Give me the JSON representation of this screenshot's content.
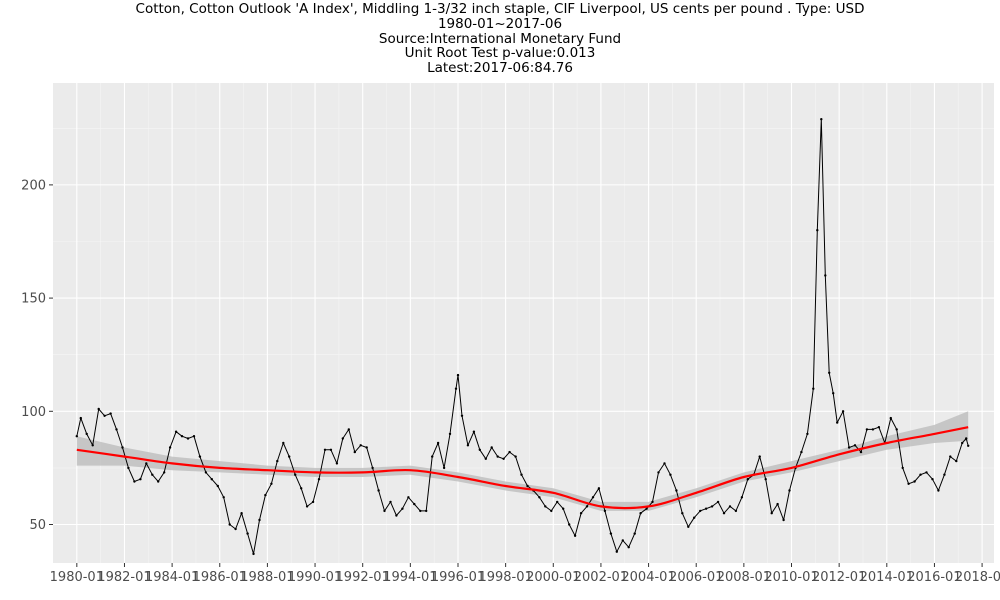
{
  "title_lines": [
    "Cotton, Cotton Outlook 'A Index', Middling 1-3/32 inch staple, CIF Liverpool, US cents per pound . Type: USD",
    "1980-01~2017-06",
    "Source:International Monetary Fund",
    "Unit Root Test p-value:0.013",
    "Latest:2017-06:84.76"
  ],
  "chart_data": {
    "type": "line",
    "title": "Cotton, Cotton Outlook 'A Index', Middling 1-3/32 inch staple, CIF Liverpool, US cents per pound . Type: USD",
    "subtitle": [
      "1980-01~2017-06",
      "Source:International Monetary Fund",
      "Unit Root Test p-value:0.013",
      "Latest:2017-06:84.76"
    ],
    "xlabel": "",
    "ylabel": "",
    "xlim": [
      "1979-01",
      "2018-07"
    ],
    "ylim": [
      33,
      245
    ],
    "x_ticks": [
      "1980-01",
      "1982-01",
      "1984-01",
      "1986-01",
      "1988-01",
      "1990-01",
      "1992-01",
      "1994-01",
      "1996-01",
      "1998-01",
      "2000-01",
      "2002-01",
      "2004-01",
      "2006-01",
      "2008-01",
      "2010-01",
      "2012-01",
      "2014-01",
      "2016-01",
      "2018-01"
    ],
    "y_ticks": [
      50,
      100,
      150,
      200
    ],
    "grid": true,
    "legend": "none",
    "colors": {
      "series": "#000000",
      "trend": "#ff0000",
      "band": "#bfbfbf",
      "panel": "#ebebeb",
      "grid": "#ffffff"
    },
    "series": [
      {
        "role": "observed",
        "style": "black line with point markers",
        "points": [
          [
            "1980-01",
            89
          ],
          [
            "1980-03",
            97
          ],
          [
            "1980-06",
            90
          ],
          [
            "1980-09",
            85
          ],
          [
            "1980-12",
            101
          ],
          [
            "1981-03",
            98
          ],
          [
            "1981-06",
            99
          ],
          [
            "1981-09",
            92
          ],
          [
            "1981-12",
            84
          ],
          [
            "1982-03",
            75
          ],
          [
            "1982-06",
            69
          ],
          [
            "1982-09",
            70
          ],
          [
            "1982-12",
            77
          ],
          [
            "1983-03",
            72
          ],
          [
            "1983-06",
            69
          ],
          [
            "1983-09",
            73
          ],
          [
            "1983-12",
            84
          ],
          [
            "1984-03",
            91
          ],
          [
            "1984-06",
            89
          ],
          [
            "1984-09",
            88
          ],
          [
            "1984-12",
            89
          ],
          [
            "1985-03",
            80
          ],
          [
            "1985-06",
            73
          ],
          [
            "1985-09",
            70
          ],
          [
            "1985-12",
            67
          ],
          [
            "1986-03",
            62
          ],
          [
            "1986-06",
            50
          ],
          [
            "1986-09",
            48
          ],
          [
            "1986-12",
            55
          ],
          [
            "1987-03",
            46
          ],
          [
            "1987-06",
            37
          ],
          [
            "1987-09",
            52
          ],
          [
            "1987-12",
            63
          ],
          [
            "1988-03",
            68
          ],
          [
            "1988-06",
            78
          ],
          [
            "1988-09",
            86
          ],
          [
            "1988-12",
            80
          ],
          [
            "1989-03",
            72
          ],
          [
            "1989-06",
            66
          ],
          [
            "1989-09",
            58
          ],
          [
            "1989-12",
            60
          ],
          [
            "1990-03",
            70
          ],
          [
            "1990-06",
            83
          ],
          [
            "1990-09",
            83
          ],
          [
            "1990-12",
            77
          ],
          [
            "1991-03",
            88
          ],
          [
            "1991-06",
            92
          ],
          [
            "1991-09",
            82
          ],
          [
            "1991-12",
            85
          ],
          [
            "1992-03",
            84
          ],
          [
            "1992-06",
            75
          ],
          [
            "1992-09",
            65
          ],
          [
            "1992-12",
            56
          ],
          [
            "1993-03",
            60
          ],
          [
            "1993-06",
            54
          ],
          [
            "1993-09",
            57
          ],
          [
            "1993-12",
            62
          ],
          [
            "1994-03",
            59
          ],
          [
            "1994-06",
            56
          ],
          [
            "1994-09",
            56
          ],
          [
            "1994-12",
            80
          ],
          [
            "1995-03",
            86
          ],
          [
            "1995-06",
            75
          ],
          [
            "1995-09",
            90
          ],
          [
            "1995-12",
            110
          ],
          [
            "1996-01",
            116
          ],
          [
            "1996-03",
            98
          ],
          [
            "1996-06",
            85
          ],
          [
            "1996-09",
            91
          ],
          [
            "1996-12",
            83
          ],
          [
            "1997-03",
            79
          ],
          [
            "1997-06",
            84
          ],
          [
            "1997-09",
            80
          ],
          [
            "1997-12",
            79
          ],
          [
            "1998-03",
            82
          ],
          [
            "1998-06",
            80
          ],
          [
            "1998-09",
            72
          ],
          [
            "1998-12",
            67
          ],
          [
            "1999-03",
            65
          ],
          [
            "1999-06",
            62
          ],
          [
            "1999-09",
            58
          ],
          [
            "1999-12",
            56
          ],
          [
            "2000-03",
            60
          ],
          [
            "2000-06",
            57
          ],
          [
            "2000-09",
            50
          ],
          [
            "2000-12",
            45
          ],
          [
            "2001-03",
            55
          ],
          [
            "2001-06",
            58
          ],
          [
            "2001-09",
            62
          ],
          [
            "2001-12",
            66
          ],
          [
            "2002-03",
            56
          ],
          [
            "2002-06",
            46
          ],
          [
            "2002-09",
            38
          ],
          [
            "2002-12",
            43
          ],
          [
            "2003-03",
            40
          ],
          [
            "2003-06",
            46
          ],
          [
            "2003-09",
            55
          ],
          [
            "2003-12",
            57
          ],
          [
            "2004-03",
            60
          ],
          [
            "2004-06",
            73
          ],
          [
            "2004-09",
            77
          ],
          [
            "2004-12",
            72
          ],
          [
            "2005-03",
            65
          ],
          [
            "2005-06",
            55
          ],
          [
            "2005-09",
            49
          ],
          [
            "2005-12",
            53
          ],
          [
            "2006-03",
            56
          ],
          [
            "2006-06",
            57
          ],
          [
            "2006-09",
            58
          ],
          [
            "2006-12",
            60
          ],
          [
            "2007-03",
            55
          ],
          [
            "2007-06",
            58
          ],
          [
            "2007-09",
            56
          ],
          [
            "2007-12",
            62
          ],
          [
            "2008-03",
            70
          ],
          [
            "2008-06",
            72
          ],
          [
            "2008-09",
            80
          ],
          [
            "2008-12",
            70
          ],
          [
            "2009-03",
            55
          ],
          [
            "2009-06",
            59
          ],
          [
            "2009-09",
            52
          ],
          [
            "2009-12",
            65
          ],
          [
            "2010-03",
            75
          ],
          [
            "2010-06",
            82
          ],
          [
            "2010-09",
            90
          ],
          [
            "2010-12",
            110
          ],
          [
            "2011-02",
            180
          ],
          [
            "2011-04",
            229
          ],
          [
            "2011-06",
            160
          ],
          [
            "2011-08",
            117
          ],
          [
            "2011-10",
            108
          ],
          [
            "2011-12",
            95
          ],
          [
            "2012-03",
            100
          ],
          [
            "2012-06",
            84
          ],
          [
            "2012-09",
            85
          ],
          [
            "2012-12",
            82
          ],
          [
            "2013-03",
            92
          ],
          [
            "2013-06",
            92
          ],
          [
            "2013-09",
            93
          ],
          [
            "2013-12",
            86
          ],
          [
            "2014-03",
            97
          ],
          [
            "2014-06",
            92
          ],
          [
            "2014-09",
            75
          ],
          [
            "2014-12",
            68
          ],
          [
            "2015-03",
            69
          ],
          [
            "2015-06",
            72
          ],
          [
            "2015-09",
            73
          ],
          [
            "2015-12",
            70
          ],
          [
            "2016-03",
            65
          ],
          [
            "2016-06",
            72
          ],
          [
            "2016-09",
            80
          ],
          [
            "2016-12",
            78
          ],
          [
            "2017-03",
            86
          ],
          [
            "2017-05",
            88
          ],
          [
            "2017-06",
            84.76
          ]
        ]
      },
      {
        "role": "trend",
        "style": "red smoothed line with grey confidence band",
        "points": [
          [
            "1980-01",
            83,
            76,
            89
          ],
          [
            "1982-01",
            80,
            76,
            84
          ],
          [
            "1984-01",
            77,
            74,
            80
          ],
          [
            "1986-01",
            75,
            73,
            78
          ],
          [
            "1988-01",
            74,
            72,
            76
          ],
          [
            "1990-01",
            73,
            71,
            75
          ],
          [
            "1992-01",
            73,
            71,
            75
          ],
          [
            "1994-01",
            74,
            72,
            76
          ],
          [
            "1996-01",
            71,
            69,
            73
          ],
          [
            "1998-01",
            67,
            65,
            69
          ],
          [
            "2000-01",
            64,
            62,
            66
          ],
          [
            "2002-01",
            58,
            56,
            60
          ],
          [
            "2004-01",
            58,
            56,
            60
          ],
          [
            "2006-01",
            64,
            62,
            66
          ],
          [
            "2008-01",
            71,
            69,
            73
          ],
          [
            "2010-01",
            75,
            73,
            78
          ],
          [
            "2012-01",
            81,
            78,
            83
          ],
          [
            "2014-01",
            86,
            83,
            89
          ],
          [
            "2016-01",
            90,
            86,
            94
          ],
          [
            "2017-06",
            93,
            87,
            100
          ]
        ]
      }
    ]
  }
}
